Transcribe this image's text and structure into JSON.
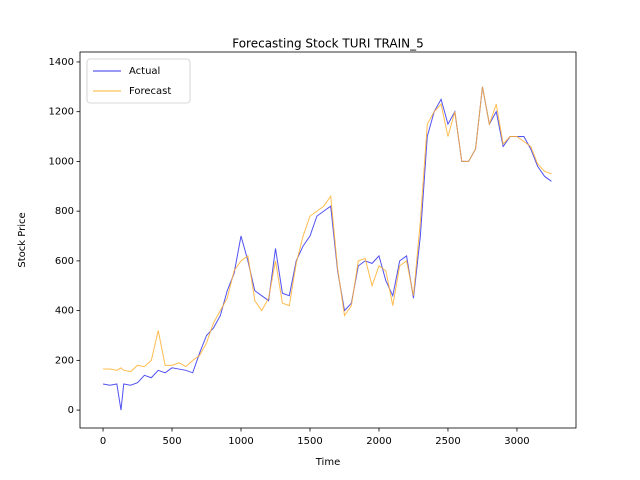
{
  "chart_data": {
    "type": "line",
    "title": "Forecasting Stock TURI TRAIN_5",
    "x_label": "Time",
    "y_label": "Stock Price",
    "x": [
      0,
      50,
      100,
      130,
      150,
      200,
      250,
      300,
      350,
      400,
      450,
      500,
      550,
      600,
      650,
      700,
      750,
      800,
      850,
      900,
      950,
      1000,
      1050,
      1100,
      1150,
      1200,
      1250,
      1300,
      1350,
      1400,
      1450,
      1500,
      1550,
      1600,
      1650,
      1700,
      1750,
      1800,
      1850,
      1900,
      1950,
      2000,
      2050,
      2100,
      2150,
      2200,
      2250,
      2300,
      2350,
      2400,
      2450,
      2500,
      2550,
      2600,
      2650,
      2700,
      2750,
      2800,
      2850,
      2900,
      2950,
      3000,
      3050,
      3100,
      3150,
      3200,
      3250
    ],
    "series": [
      {
        "name": "Actual",
        "color": "#3333ee",
        "values": [
          105,
          100,
          105,
          0,
          105,
          100,
          110,
          140,
          130,
          160,
          150,
          170,
          165,
          160,
          150,
          230,
          300,
          330,
          380,
          480,
          550,
          700,
          600,
          480,
          460,
          440,
          650,
          470,
          460,
          600,
          660,
          700,
          780,
          800,
          820,
          560,
          400,
          430,
          580,
          600,
          590,
          620,
          520,
          460,
          600,
          620,
          450,
          700,
          1100,
          1200,
          1250,
          1150,
          1200,
          1000,
          1000,
          1050,
          1300,
          1150,
          1200,
          1060,
          1100,
          1100,
          1100,
          1050,
          980,
          940,
          920
        ]
      },
      {
        "name": "Forecast",
        "color": "#ffb030",
        "values": [
          165,
          165,
          160,
          170,
          160,
          155,
          180,
          175,
          200,
          320,
          180,
          180,
          190,
          175,
          200,
          220,
          270,
          350,
          400,
          450,
          560,
          600,
          620,
          440,
          400,
          450,
          600,
          430,
          420,
          590,
          700,
          780,
          800,
          820,
          860,
          570,
          380,
          420,
          600,
          610,
          500,
          580,
          560,
          420,
          580,
          600,
          460,
          760,
          1150,
          1200,
          1230,
          1100,
          1200,
          1000,
          1000,
          1050,
          1300,
          1150,
          1230,
          1070,
          1100,
          1100,
          1080,
          1060,
          990,
          960,
          950
        ]
      }
    ],
    "xlim": [
      -167,
      3428
    ],
    "ylim": [
      -72,
      1440
    ],
    "xticks": [
      0,
      500,
      1000,
      1500,
      2000,
      2500,
      3000
    ],
    "yticks": [
      0,
      200,
      400,
      600,
      800,
      1000,
      1200,
      1400
    ],
    "legend": "upper left",
    "grid": false
  }
}
